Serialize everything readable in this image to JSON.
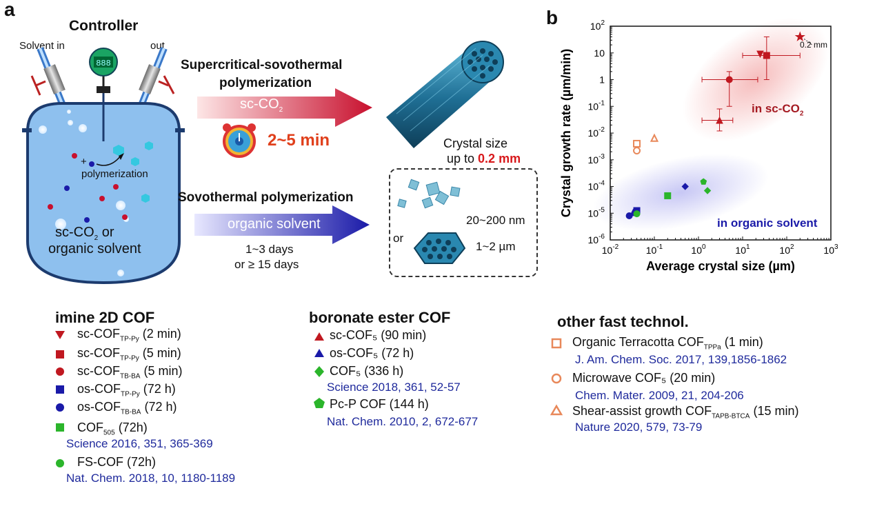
{
  "panel_a": {
    "label": "a",
    "controller": "Controller",
    "display": "888",
    "solvent_in": "Solvent in",
    "solvent_out": "out",
    "reaction_plus": "+",
    "reaction_label": "polymerization",
    "vessel_text_1a": "sc-CO",
    "vessel_text_1sub": "2",
    "vessel_text_1b": " or",
    "vessel_text_2": "organic solvent",
    "route1_title_1": "Supercritical-sovothermal",
    "route1_title_2": "polymerization",
    "route1_arrow_a": "sc-CO",
    "route1_arrow_sub": "2",
    "route1_time": "2~5 min",
    "route1_size_1": "Crystal size",
    "route1_size_2a": "up to ",
    "route1_size_2b": "0.2 mm",
    "route2_title": "Sovothermal polymerization",
    "route2_arrow": "organic solvent",
    "route2_time_1": "1~3 days",
    "route2_time_2": "or ≥ 15 days",
    "route2_size_1": "20~200 nm",
    "route2_or": "or",
    "route2_size_2": "1~2 µm",
    "colors": {
      "red_arrow": "#c8102e",
      "blue_arrow": "#1a1aa8",
      "vessel": "#8ec0ee",
      "time": "#e0401c"
    }
  },
  "panel_b": {
    "label": "b",
    "region_sc": "in sc-CO",
    "region_sc_sub": "2",
    "region_org": "in organic solvent",
    "star_note": "0.2 mm"
  },
  "chart_data": {
    "type": "scatter",
    "xlabel": "Average crystal size (µm)",
    "ylabel": "Crystal growth rate (µm/min)",
    "x_scale": "log",
    "y_scale": "log",
    "xlim": [
      0.01,
      1000
    ],
    "ylim": [
      1e-06,
      100
    ],
    "x_ticks": [
      {
        "v": 0.01,
        "b": "10",
        "e": "-2"
      },
      {
        "v": 0.1,
        "b": "10",
        "e": "-1"
      },
      {
        "v": 1,
        "b": "10",
        "e": "0"
      },
      {
        "v": 10,
        "b": "10",
        "e": "1"
      },
      {
        "v": 100,
        "b": "10",
        "e": "2"
      },
      {
        "v": 1000,
        "b": "10",
        "e": "3"
      }
    ],
    "y_ticks": [
      {
        "v": 1e-06,
        "b": "10",
        "e": "-6"
      },
      {
        "v": 1e-05,
        "b": "10",
        "e": "-5"
      },
      {
        "v": 0.0001,
        "b": "10",
        "e": "-4"
      },
      {
        "v": 0.001,
        "b": "10",
        "e": "-3"
      },
      {
        "v": 0.01,
        "b": "10",
        "e": "-2"
      },
      {
        "v": 0.1,
        "b": "10",
        "e": "-1"
      },
      {
        "v": 1,
        "b": "1",
        "e": ""
      },
      {
        "v": 10,
        "b": "10",
        "e": ""
      },
      {
        "v": 100,
        "b": "10",
        "e": "2"
      }
    ],
    "points": [
      {
        "name": "sc-COF TP-Py (2 min)",
        "x": 25,
        "y": 9,
        "marker": "triangle-down",
        "color": "#c01820",
        "filled": true
      },
      {
        "name": "sc-COF TP-Py (5 min)",
        "x": 35,
        "y": 8,
        "marker": "square",
        "color": "#c01820",
        "filled": true,
        "xerr": [
          10,
          200
        ],
        "yerr": [
          1,
          40
        ]
      },
      {
        "name": "sc-COF TB-BA (5 min)",
        "x": 5,
        "y": 1,
        "marker": "circle",
        "color": "#c01820",
        "filled": true,
        "xerr": [
          1.2,
          22
        ],
        "yerr": [
          0.1,
          2
        ]
      },
      {
        "name": "sc-COF5 (90 min)",
        "x": 3,
        "y": 0.03,
        "marker": "triangle",
        "color": "#c01820",
        "filled": true,
        "xerr": [
          1.2,
          6
        ],
        "yerr": [
          0.012,
          0.08
        ]
      },
      {
        "name": "0.2 mm",
        "x": 200,
        "y": 40,
        "marker": "star",
        "color": "#c01820",
        "filled": true
      },
      {
        "name": "os-COF TP-Py (72 h)",
        "x": 0.04,
        "y": 1.25e-05,
        "marker": "square",
        "color": "#1a1aa8",
        "filled": true
      },
      {
        "name": "os-COF TB-BA (72 h)",
        "x": 0.027,
        "y": 8e-06,
        "marker": "circle",
        "color": "#1a1aa8",
        "filled": true
      },
      {
        "name": "os-COF5 (72 h)",
        "x": 0.033,
        "y": 1.05e-05,
        "marker": "triangle",
        "color": "#1a1aa8",
        "filled": true
      },
      {
        "name": "COF505 (72h)",
        "x": 0.2,
        "y": 4.5e-05,
        "marker": "square",
        "color": "#2bb52b",
        "filled": true
      },
      {
        "name": "FS-COF (72h)",
        "x": 0.04,
        "y": 9.5e-06,
        "marker": "circle",
        "color": "#2bb52b",
        "filled": true
      },
      {
        "name": "COF5 (336 h)",
        "x": 1.6,
        "y": 7e-05,
        "marker": "diamond",
        "color": "#2bb52b",
        "filled": true
      },
      {
        "name": "Pc-P COF (144 h)",
        "x": 1.3,
        "y": 0.00015,
        "marker": "pentagon",
        "color": "#2bb52b",
        "filled": true
      },
      {
        "name": "os-diamond",
        "x": 0.5,
        "y": 0.0001,
        "marker": "diamond",
        "color": "#1a1aa8",
        "filled": true
      },
      {
        "name": "Organic Terracotta COF TPPa (1 min)",
        "x": 0.04,
        "y": 0.004,
        "marker": "square",
        "color": "#e8885a",
        "filled": false
      },
      {
        "name": "Microwave COF5 (20 min)",
        "x": 0.04,
        "y": 0.0022,
        "marker": "circle",
        "color": "#e8885a",
        "filled": false
      },
      {
        "name": "Shear-assist growth COF TAPB-BTCA (15 min)",
        "x": 0.1,
        "y": 0.0065,
        "marker": "triangle",
        "color": "#e8885a",
        "filled": false
      }
    ]
  },
  "legend": {
    "group1_title": "imine 2D COF",
    "group2_title": "boronate ester COF",
    "group3_title": "other fast technol.",
    "g1": [
      {
        "pre": "sc-COF",
        "sub": "TP-Py",
        "post": " (2 min)"
      },
      {
        "pre": "sc-COF",
        "sub": "TP-Py",
        "post": " (5 min)"
      },
      {
        "pre": "sc-COF",
        "sub": "TB-BA",
        "post": " (5 min)"
      },
      {
        "pre": "os-COF",
        "sub": "TP-Py",
        "post": " (72 h)"
      },
      {
        "pre": "os-COF",
        "sub": "TB-BA",
        "post": " (72 h)"
      },
      {
        "pre": "COF",
        "sub": "505",
        "post": " (72h)"
      },
      {
        "pre": "FS-COF",
        "sub": "",
        "post": " (72h)"
      }
    ],
    "g1_refs": [
      "Science 2016, 351, 365-369",
      "Nat. Chem. 2018, 10, 1180-1189"
    ],
    "g2": [
      "sc-COF₅ (90 min)",
      "os-COF₅ (72 h)",
      "COF₅ (336 h)",
      "Pc-P COF (144 h)"
    ],
    "g2_refs": [
      "Science 2018, 361, 52-57",
      "Nat. Chem. 2010, 2, 672-677"
    ],
    "g3": [
      {
        "pre": "Organic Terracotta COF",
        "sub": "TPPa",
        "post": " (1 min)"
      },
      {
        "pre": "Microwave COF₅ (20 min)",
        "sub": "",
        "post": ""
      },
      {
        "pre": "Shear-assist growth COF",
        "sub": "TAPB-BTCA",
        "post": " (15 min)"
      }
    ],
    "g3_refs": [
      "J. Am. Chem. Soc. 2017, 139,1856-1862",
      "Chem. Mater. 2009, 21, 204-206",
      "Nature 2020, 579, 73-79"
    ]
  }
}
